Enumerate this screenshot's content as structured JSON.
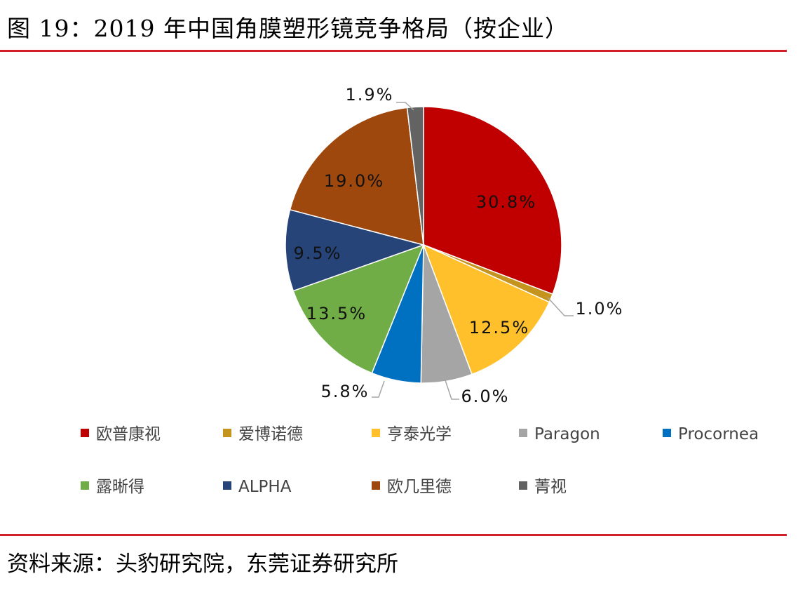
{
  "title": "图 19：2019 年中国角膜塑形镜竞争格局（按企业）",
  "source": "资料来源：头豹研究院，东莞证券研究所",
  "chart_data": {
    "type": "pie",
    "title": "",
    "start_angle": "12 o'clock, clockwise",
    "legend_position": "bottom",
    "categories": [
      "欧普康视",
      "爱博诺德",
      "亨泰光学",
      "Paragon",
      "Procornea",
      "露晰得",
      "ALPHA",
      "欧几里德",
      "菁视"
    ],
    "values": [
      30.8,
      1.0,
      12.5,
      6.0,
      5.8,
      13.5,
      9.5,
      19.0,
      1.9
    ],
    "labels": [
      "30.8%",
      "1.0%",
      "12.5%",
      "6.0%",
      "5.8%",
      "13.5%",
      "9.5%",
      "19.0%",
      "1.9%"
    ],
    "colors": [
      "#C00000",
      "#C5941E",
      "#FFC02B",
      "#A5A5A5",
      "#0070C0",
      "#70AD47",
      "#264478",
      "#9E480E",
      "#636363"
    ]
  }
}
